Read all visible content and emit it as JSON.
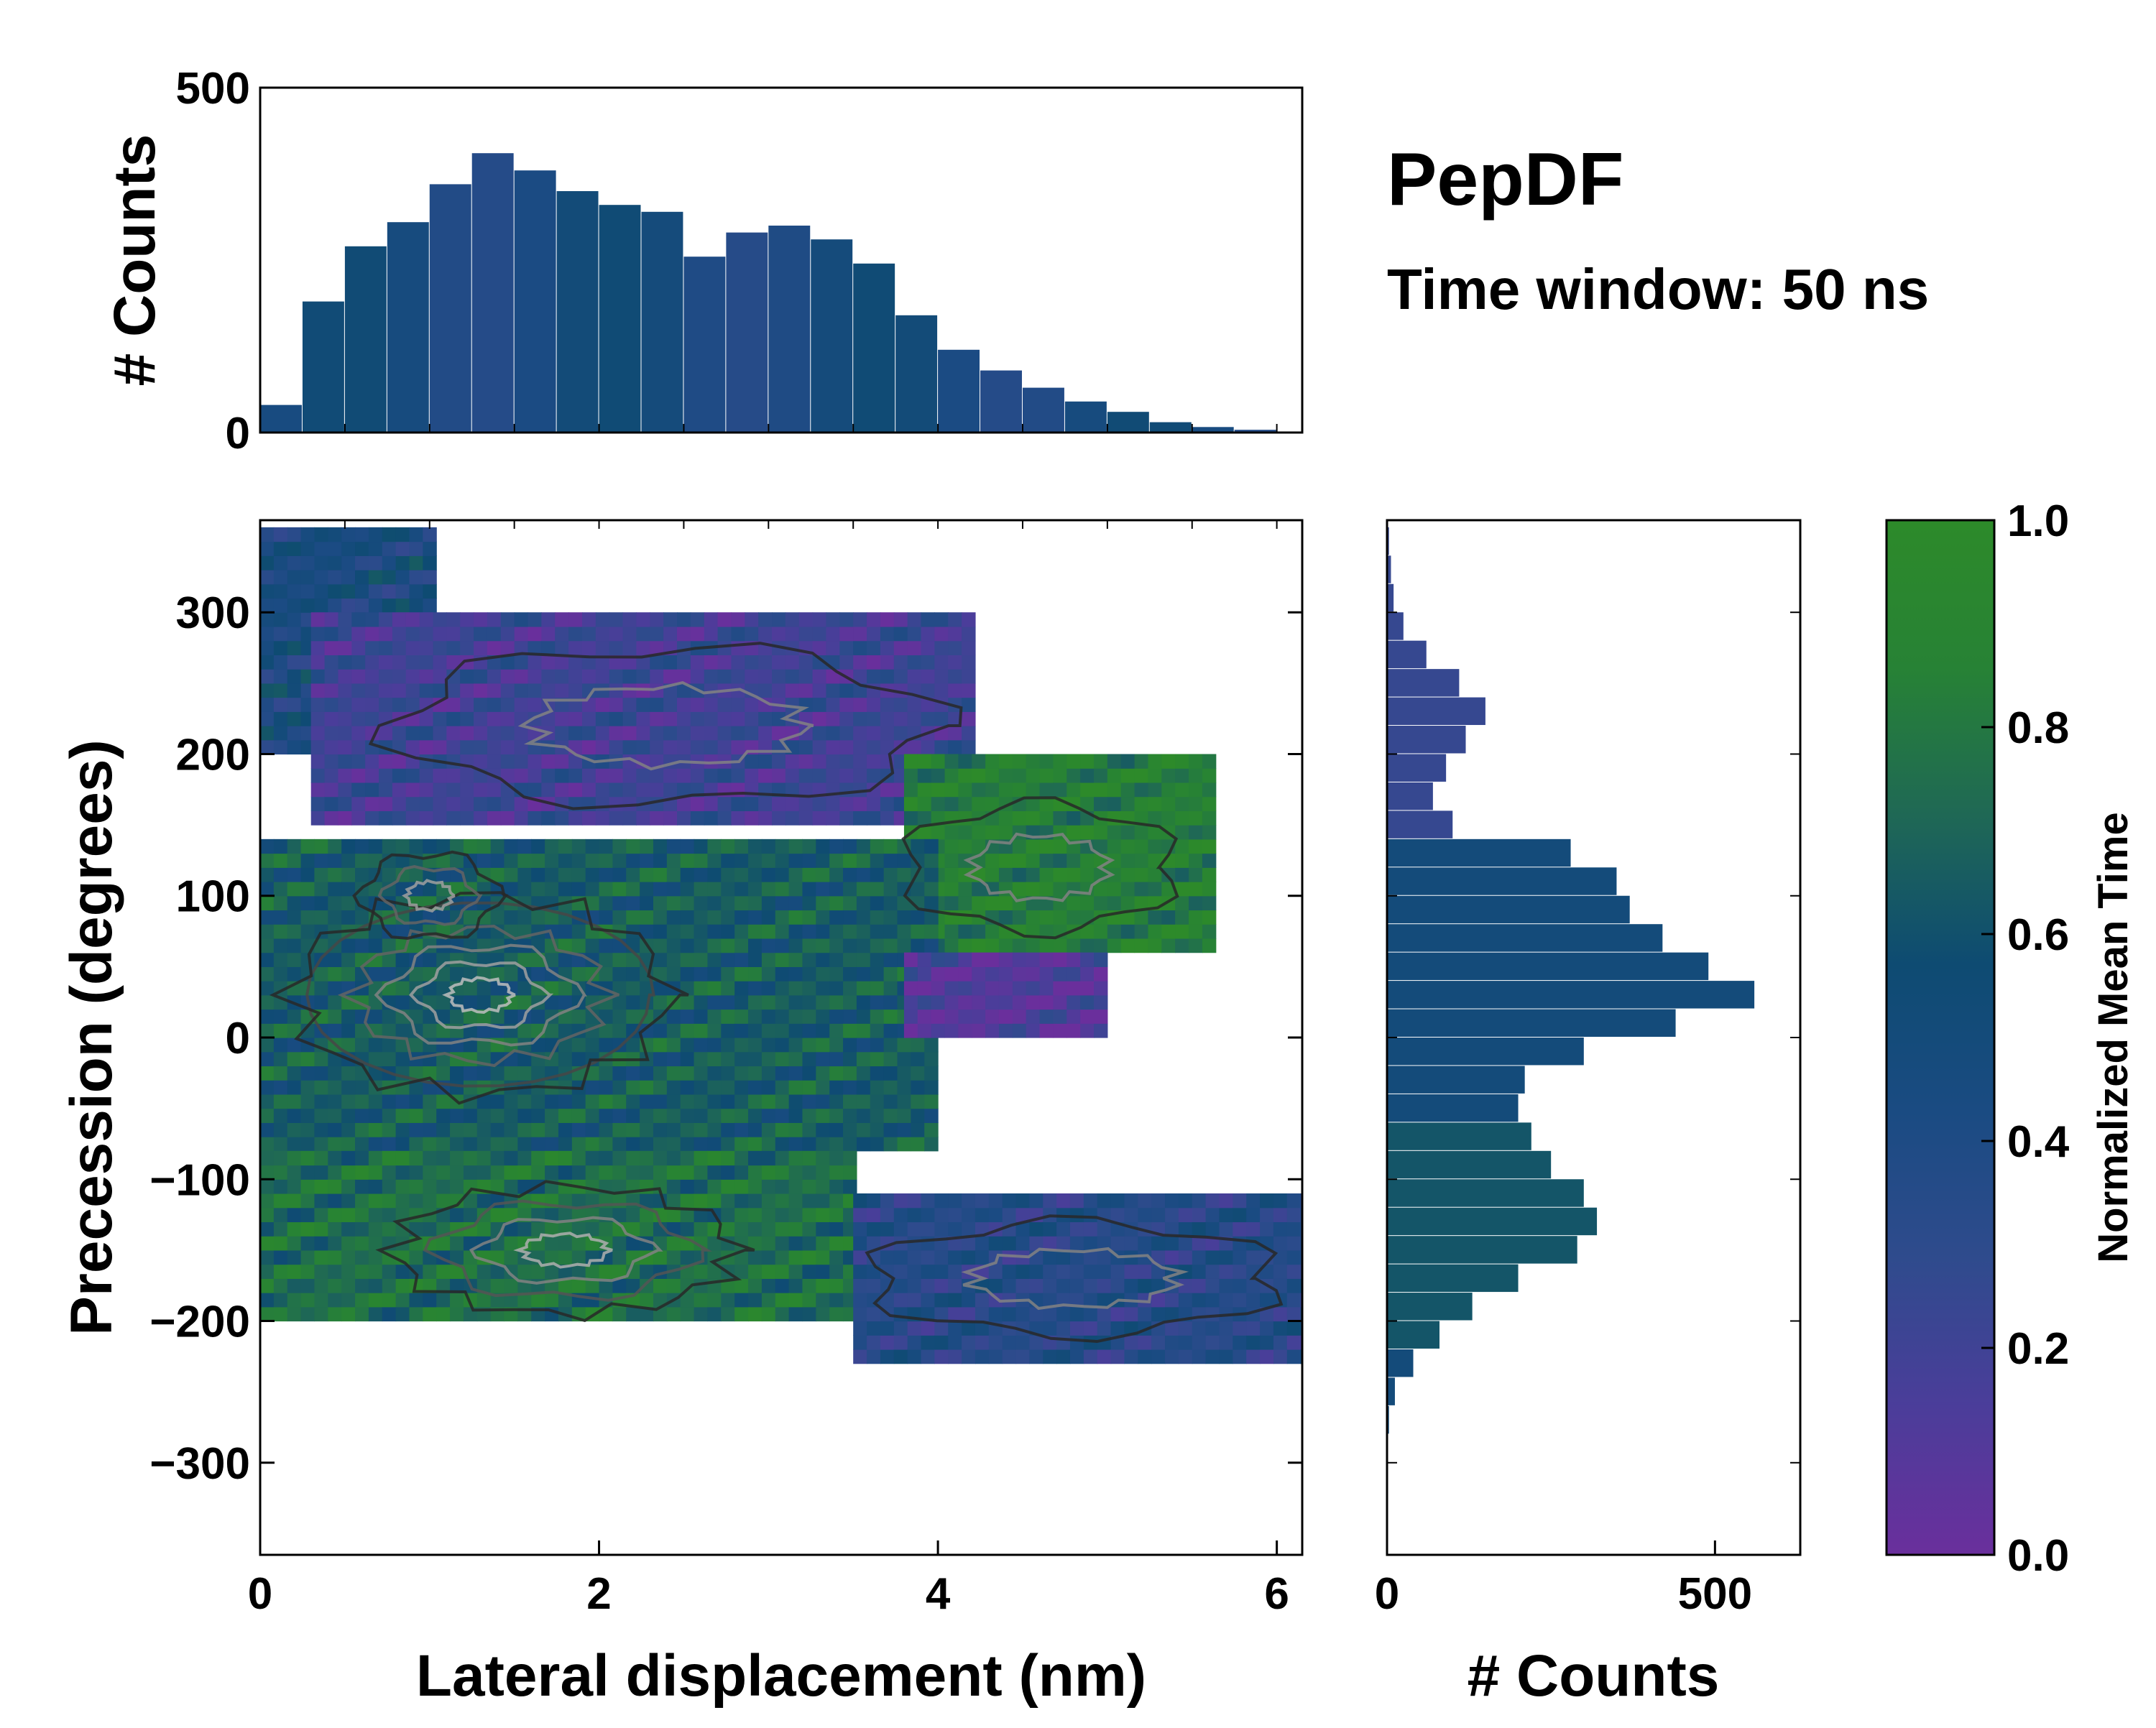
{
  "figure": {
    "title": "PepDF",
    "subtitle": "Time window: 50 ns"
  },
  "chart_data": [
    {
      "id": "top-histogram",
      "type": "bar",
      "title": "",
      "xlabel": "",
      "ylabel": "# Counts",
      "xlim": [
        0,
        6.15
      ],
      "ylim": [
        0,
        500
      ],
      "yticks": [
        0,
        500
      ],
      "bin_width": 0.25,
      "categories": [
        0.125,
        0.375,
        0.625,
        0.875,
        1.125,
        1.375,
        1.625,
        1.875,
        2.125,
        2.375,
        2.625,
        2.875,
        3.125,
        3.375,
        3.625,
        3.875,
        4.125,
        4.375,
        4.625,
        4.875,
        5.125,
        5.375,
        5.625,
        5.875
      ],
      "values": [
        40,
        190,
        270,
        305,
        360,
        405,
        380,
        350,
        330,
        320,
        255,
        290,
        300,
        280,
        245,
        170,
        120,
        90,
        65,
        45,
        30,
        15,
        8,
        4
      ]
    },
    {
      "id": "main-heatmap",
      "type": "heatmap",
      "title": "",
      "xlabel": "Lateral displacement (nm)",
      "ylabel": "Precession (degrees)",
      "xlim": [
        0,
        6.15
      ],
      "ylim": [
        -365,
        365
      ],
      "xticks": [
        0,
        2,
        4,
        6
      ],
      "yticks": [
        300,
        200,
        100,
        0,
        -100,
        -200,
        -300
      ],
      "regions": [
        {
          "name": "upper-left lobe",
          "x": [
            0,
            1.0
          ],
          "y": [
            200,
            360
          ],
          "mean_time": 0.45
        },
        {
          "name": "upper band",
          "x": [
            0.3,
            4.2
          ],
          "y": [
            150,
            300
          ],
          "mean_time": 0.2
        },
        {
          "name": "upper-right branch",
          "x": [
            3.8,
            5.6
          ],
          "y": [
            60,
            200
          ],
          "mean_time": 0.85
        },
        {
          "name": "central core",
          "x": [
            0,
            4.0
          ],
          "y": [
            -80,
            140
          ],
          "mean_time": 0.65
        },
        {
          "name": "middle-right purple",
          "x": [
            3.8,
            5.0
          ],
          "y": [
            0,
            60
          ],
          "mean_time": 0.1
        },
        {
          "name": "lower core",
          "x": [
            0,
            3.5
          ],
          "y": [
            -200,
            -80
          ],
          "mean_time": 0.75
        },
        {
          "name": "lower-right branch",
          "x": [
            3.5,
            6.15
          ],
          "y": [
            -230,
            -110
          ],
          "mean_time": 0.35
        }
      ]
    },
    {
      "id": "right-histogram",
      "type": "bar",
      "orientation": "horizontal",
      "title": "",
      "xlabel": "# Counts",
      "ylabel": "",
      "xlim": [
        0,
        630
      ],
      "ylim": [
        -365,
        365
      ],
      "xticks": [
        0,
        500
      ],
      "bin_width": 20,
      "categories": [
        350,
        330,
        310,
        290,
        270,
        250,
        230,
        210,
        190,
        170,
        150,
        130,
        110,
        90,
        70,
        50,
        30,
        10,
        -10,
        -30,
        -50,
        -70,
        -90,
        -110,
        -130,
        -150,
        -170,
        -190,
        -210,
        -230,
        -250,
        -270
      ],
      "values": [
        3,
        6,
        10,
        25,
        60,
        110,
        150,
        120,
        90,
        70,
        100,
        280,
        350,
        370,
        420,
        490,
        560,
        440,
        300,
        210,
        200,
        220,
        250,
        300,
        320,
        290,
        200,
        130,
        80,
        40,
        12,
        3
      ]
    },
    {
      "id": "colorbar",
      "type": "colorbar",
      "label": "Normalized Mean Time",
      "range": [
        0.0,
        1.0
      ],
      "ticks": [
        "1.0",
        "0.8",
        "0.6",
        "0.4",
        "0.2",
        "0.0"
      ],
      "colormap": [
        "#6a2f9c",
        "#4b3d9a",
        "#2f4b8d",
        "#1a4b82",
        "#0e4b72",
        "#1f6855",
        "#278235",
        "#2d8a2a"
      ]
    }
  ]
}
